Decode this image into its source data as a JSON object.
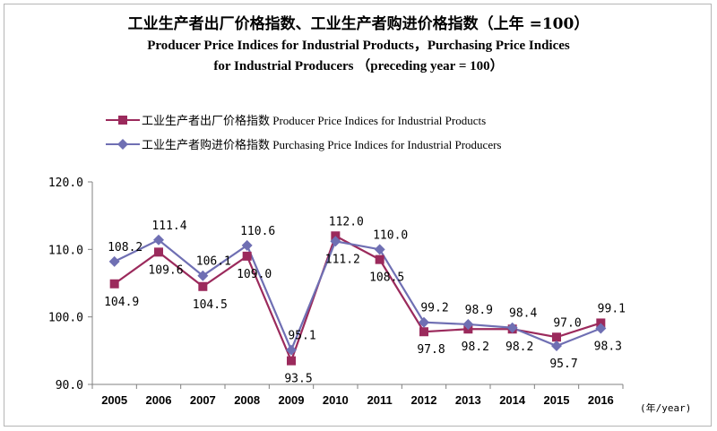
{
  "chart_data": {
    "type": "line",
    "title": "工业生产者出厂价格指数、工业生产者购进价格指数（上年 =100）",
    "subtitle_line1": "Producer Price Indices for Industrial Products，Purchasing Price Indices",
    "subtitle_line2": "for Industrial Producers （preceding year = 100）",
    "x_unit": "(年/year)",
    "categories": [
      "2005",
      "2006",
      "2007",
      "2008",
      "2009",
      "2010",
      "2011",
      "2012",
      "2013",
      "2014",
      "2015",
      "2016"
    ],
    "ylim": [
      90,
      120
    ],
    "yticks": [
      90,
      100,
      110,
      120
    ],
    "ytick_labels": [
      "90.0",
      "100.0",
      "110.0",
      "120.0"
    ],
    "legend_position": "top-left",
    "grid": false,
    "series": [
      {
        "name": "工业生产者出厂价格指数 Producer Price Indices for Industrial Products",
        "color": "#9b2a5c",
        "marker": "square",
        "values": [
          104.9,
          109.6,
          104.5,
          109.0,
          93.5,
          112.0,
          108.5,
          97.8,
          98.2,
          98.2,
          97.0,
          99.1
        ],
        "labels": [
          "104.9",
          "109.6",
          "104.5",
          "109.0",
          "93.5",
          "112.0",
          "108.5",
          "97.8",
          "98.2",
          "98.2",
          "97.0",
          "99.1"
        ]
      },
      {
        "name": "工业生产者购进价格指数 Purchasing Price Indices for Industrial Producers",
        "color": "#6f6fb3",
        "marker": "diamond",
        "values": [
          108.2,
          111.4,
          106.1,
          110.6,
          95.1,
          111.2,
          110.0,
          99.2,
          98.9,
          98.4,
          95.7,
          98.3
        ],
        "labels": [
          "108.2",
          "111.4",
          "106.1",
          "110.6",
          "95.1",
          "111.2",
          "110.0",
          "99.2",
          "98.9",
          "98.4",
          "95.7",
          "98.3"
        ]
      }
    ]
  }
}
